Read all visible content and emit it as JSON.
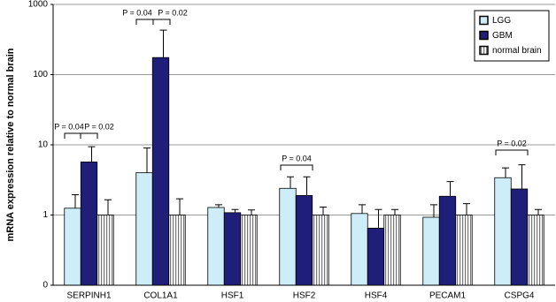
{
  "chart_data": {
    "type": "bar",
    "y_label": "mRNA expression relative to normal brain",
    "categories": [
      "SERPINH1",
      "COL1A1",
      "HSF1",
      "HSF2",
      "HSF4",
      "PECAM1",
      "CSPG4"
    ],
    "series": [
      {
        "name": "LGG",
        "color": "#cdeef8",
        "values": [
          1.25,
          4.0,
          1.28,
          2.4,
          1.05,
          0.93,
          3.4
        ],
        "errors": [
          0.7,
          5,
          0.12,
          1.1,
          0.35,
          0.47,
          1.3
        ]
      },
      {
        "name": "GBM",
        "color": "#1f1f7a",
        "values": [
          5.7,
          175,
          1.08,
          1.9,
          0.65,
          1.85,
          2.35
        ],
        "errors": [
          3.7,
          255,
          0.12,
          1.6,
          0.55,
          1.15,
          2.85
        ]
      },
      {
        "name": "normal brain",
        "color": "#9a9a9a",
        "hatch": "vertical",
        "values": [
          1.0,
          1.0,
          1.0,
          1.0,
          1.0,
          1.0,
          1.0
        ],
        "errors": [
          0.65,
          0.7,
          0.18,
          0.3,
          0.2,
          0.45,
          0.2
        ]
      }
    ],
    "log_scale": true,
    "ylim": [
      0.1,
      1000
    ],
    "yticks": [
      {
        "value": 0.1,
        "label": "0"
      },
      1,
      10,
      100,
      1000
    ],
    "grid": true,
    "legend": "top-right",
    "annotations": [
      "P = 0.04",
      "P = 0.02",
      "P = 0.04",
      "P = 0.02",
      "P = 0.04",
      "P = 0.02"
    ]
  }
}
